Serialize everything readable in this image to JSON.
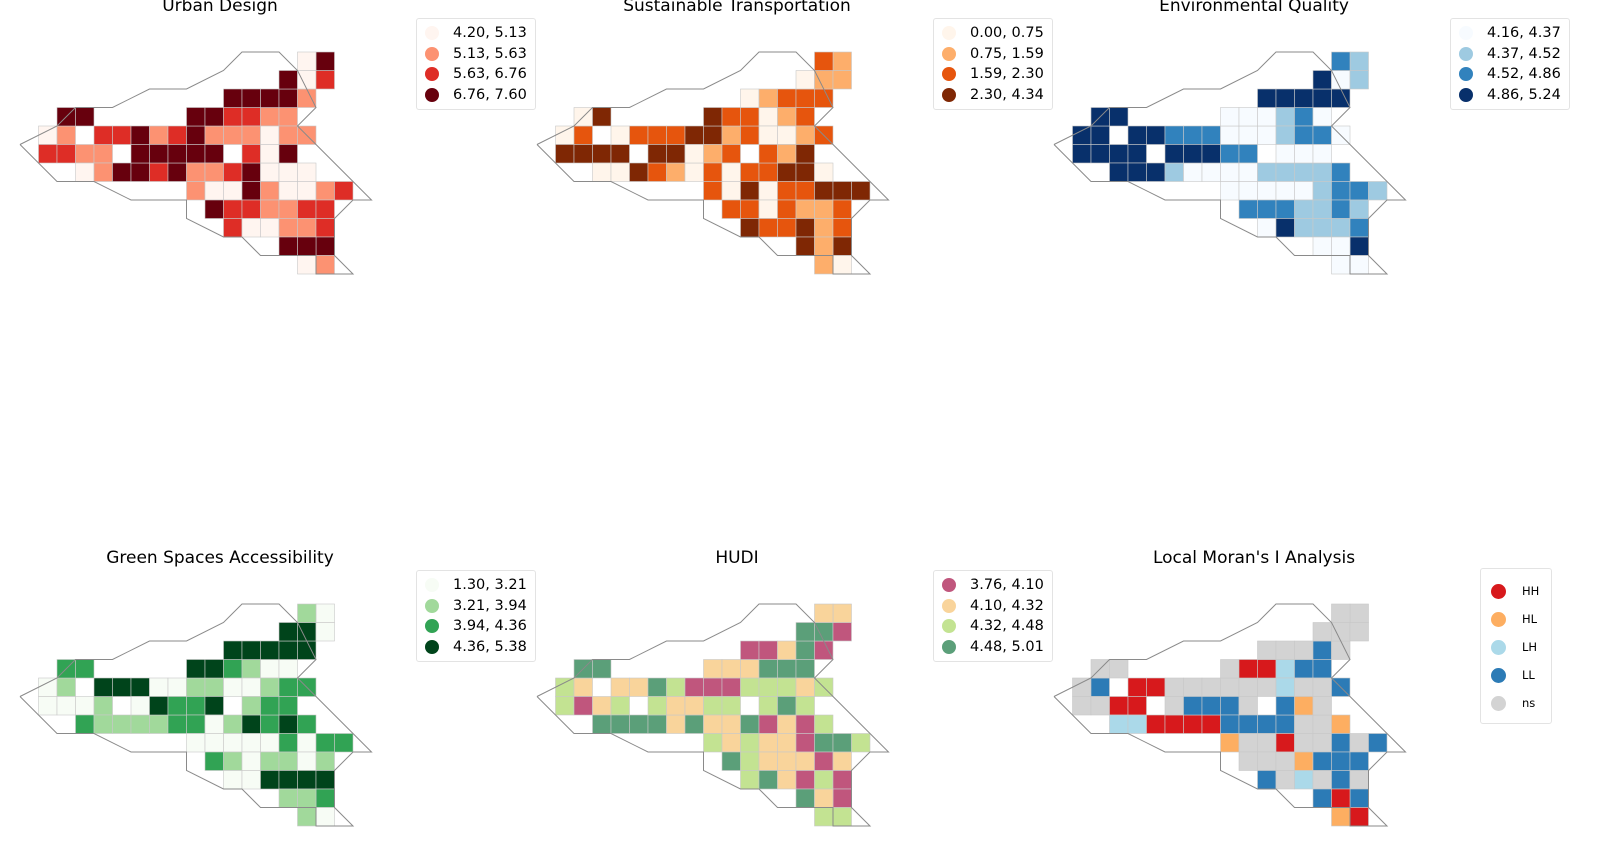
{
  "figure": {
    "boundary_points": [
      [
        0,
        5
      ],
      [
        2,
        4
      ],
      [
        3,
        3
      ],
      [
        5,
        3
      ],
      [
        7,
        2
      ],
      [
        9,
        2
      ],
      [
        11,
        1
      ],
      [
        12,
        0
      ],
      [
        14,
        0
      ],
      [
        15,
        1
      ],
      [
        16,
        3
      ],
      [
        15,
        4
      ],
      [
        16,
        5
      ],
      [
        17,
        6
      ],
      [
        18,
        7
      ],
      [
        19,
        8
      ],
      [
        18,
        8
      ],
      [
        17,
        9
      ],
      [
        17,
        10
      ],
      [
        17,
        11
      ],
      [
        18,
        12
      ],
      [
        16,
        12
      ],
      [
        16,
        11
      ],
      [
        15,
        11
      ],
      [
        13,
        11
      ],
      [
        12,
        10
      ],
      [
        11,
        10
      ],
      [
        9,
        9
      ],
      [
        9,
        8
      ],
      [
        8,
        8
      ],
      [
        6,
        8
      ],
      [
        4,
        7
      ],
      [
        2,
        7
      ],
      [
        1,
        6
      ],
      [
        0,
        5
      ]
    ],
    "cells": [
      [
        1,
        4
      ],
      [
        2,
        4
      ],
      [
        1,
        5
      ],
      [
        2,
        5
      ],
      [
        3,
        5
      ],
      [
        4,
        5
      ],
      [
        3,
        6
      ],
      [
        4,
        6
      ],
      [
        5,
        6
      ],
      [
        6,
        6
      ],
      [
        7,
        6
      ],
      [
        8,
        6
      ],
      [
        2,
        3
      ],
      [
        3,
        3
      ],
      [
        4,
        4
      ],
      [
        5,
        4
      ],
      [
        6,
        4
      ],
      [
        7,
        4
      ],
      [
        8,
        4
      ],
      [
        9,
        4
      ],
      [
        10,
        4
      ],
      [
        11,
        4
      ],
      [
        6,
        5
      ],
      [
        7,
        5
      ],
      [
        8,
        5
      ],
      [
        9,
        5
      ],
      [
        10,
        5
      ],
      [
        9,
        3
      ],
      [
        10,
        3
      ],
      [
        11,
        3
      ],
      [
        12,
        3
      ],
      [
        13,
        3
      ],
      [
        14,
        3
      ],
      [
        9,
        6
      ],
      [
        10,
        6
      ],
      [
        11,
        6
      ],
      [
        12,
        6
      ],
      [
        13,
        6
      ],
      [
        14,
        6
      ],
      [
        15,
        6
      ],
      [
        9,
        7
      ],
      [
        10,
        7
      ],
      [
        11,
        7
      ],
      [
        12,
        7
      ],
      [
        13,
        7
      ],
      [
        14,
        7
      ],
      [
        15,
        7
      ],
      [
        16,
        7
      ],
      [
        17,
        7
      ],
      [
        10,
        8
      ],
      [
        11,
        8
      ],
      [
        12,
        8
      ],
      [
        13,
        8
      ],
      [
        14,
        8
      ],
      [
        15,
        8
      ],
      [
        16,
        8
      ],
      [
        11,
        9
      ],
      [
        12,
        9
      ],
      [
        13,
        9
      ],
      [
        14,
        9
      ],
      [
        15,
        9
      ],
      [
        16,
        9
      ],
      [
        16,
        10
      ],
      [
        11,
        2
      ],
      [
        12,
        2
      ],
      [
        13,
        2
      ],
      [
        14,
        2
      ],
      [
        15,
        2
      ],
      [
        14,
        1
      ],
      [
        15,
        1
      ],
      [
        16,
        1
      ],
      [
        16,
        0
      ],
      [
        15,
        0
      ],
      [
        14,
        10
      ],
      [
        15,
        10
      ],
      [
        15,
        11
      ],
      [
        16,
        11
      ],
      [
        12,
        4
      ],
      [
        13,
        4
      ],
      [
        14,
        4
      ],
      [
        15,
        4
      ],
      [
        12,
        5
      ],
      [
        13,
        5
      ],
      [
        14,
        5
      ]
    ]
  },
  "panels": [
    {
      "id": "urban-design",
      "title": "Urban Design",
      "palette": [
        "#fff5f0",
        "#fc9272",
        "#de2d26",
        "#67000d"
      ],
      "legend": [
        "4.20, 5.13",
        "5.13, 5.63",
        "5.63, 6.76",
        "6.76, 7.60"
      ],
      "classes": [
        0,
        1,
        2,
        2,
        1,
        1,
        0,
        1,
        3,
        3,
        2,
        3,
        3,
        3,
        2,
        2,
        3,
        1,
        2,
        3,
        1,
        1,
        3,
        3,
        3,
        3,
        3,
        3,
        3,
        2,
        2,
        1,
        1,
        1,
        1,
        2,
        3,
        0,
        0,
        0,
        1,
        0,
        0,
        3,
        1,
        0,
        0,
        1,
        2,
        3,
        2,
        2,
        1,
        1,
        2,
        2,
        2,
        0,
        0,
        1,
        1,
        2,
        3,
        3,
        3,
        3,
        3,
        1,
        3,
        0,
        2,
        3,
        0,
        3,
        3,
        0,
        1,
        1,
        0,
        1,
        1,
        2,
        0,
        3
      ]
    },
    {
      "id": "sustainable-transportation",
      "title": "Sustainable Transportation",
      "palette": [
        "#fff5eb",
        "#fdae6b",
        "#e6550d",
        "#7f2704"
      ],
      "legend": [
        "0.00, 0.75",
        "0.75, 1.59",
        "1.59, 2.30",
        "2.30, 4.34"
      ],
      "classes": [
        0,
        2,
        3,
        3,
        3,
        3,
        0,
        0,
        3,
        2,
        1,
        0,
        0,
        3,
        0,
        2,
        2,
        2,
        3,
        3,
        1,
        2,
        3,
        3,
        0,
        1,
        2,
        3,
        2,
        2,
        0,
        1,
        2,
        2,
        0,
        2,
        2,
        3,
        3,
        0,
        2,
        0,
        3,
        0,
        2,
        2,
        3,
        3,
        3,
        2,
        2,
        0,
        2,
        1,
        1,
        2,
        3,
        2,
        2,
        3,
        1,
        2,
        3,
        0,
        1,
        2,
        2,
        2,
        0,
        1,
        1,
        1,
        2,
        3,
        1,
        1,
        0,
        0,
        0,
        1,
        2,
        2,
        1,
        3
      ]
    },
    {
      "id": "environmental-quality",
      "title": "Environmental Quality",
      "palette": [
        "#f7fbff",
        "#9ecae1",
        "#3182bd",
        "#08306b"
      ],
      "legend": [
        "4.16, 4.37",
        "4.37, 4.52",
        "4.52, 4.86",
        "4.86, 5.24"
      ],
      "classes": [
        3,
        3,
        3,
        3,
        3,
        3,
        3,
        3,
        3,
        1,
        0,
        0,
        3,
        3,
        3,
        3,
        2,
        2,
        2,
        0,
        0,
        0,
        3,
        3,
        3,
        2,
        2,
        0,
        0,
        0,
        1,
        2,
        0,
        0,
        0,
        1,
        1,
        1,
        1,
        2,
        0,
        0,
        0,
        0,
        0,
        1,
        2,
        2,
        1,
        2,
        2,
        2,
        1,
        1,
        2,
        1,
        0,
        3,
        1,
        1,
        1,
        2,
        3,
        3,
        3,
        3,
        3,
        3,
        3,
        0,
        1,
        1,
        2,
        0,
        0,
        0,
        0,
        1,
        2,
        2,
        0,
        0,
        0,
        0
      ]
    },
    {
      "id": "green-spaces-accessibility",
      "title": "Green Spaces Accessibility",
      "palette": [
        "#f7fcf5",
        "#a1d99b",
        "#31a354",
        "#00441b"
      ],
      "legend": [
        "1.30, 3.21",
        "3.21, 3.94",
        "3.94, 4.36",
        "4.36, 5.38"
      ],
      "classes": [
        0,
        1,
        0,
        0,
        0,
        1,
        2,
        1,
        1,
        1,
        1,
        2,
        2,
        2,
        3,
        3,
        3,
        0,
        0,
        1,
        1,
        0,
        0,
        3,
        2,
        2,
        3,
        3,
        3,
        2,
        1,
        0,
        0,
        2,
        0,
        1,
        3,
        2,
        3,
        2,
        0,
        0,
        0,
        0,
        0,
        2,
        0,
        2,
        2,
        2,
        1,
        0,
        1,
        1,
        0,
        1,
        0,
        0,
        3,
        3,
        3,
        3,
        2,
        3,
        3,
        3,
        3,
        3,
        3,
        3,
        0,
        0,
        1,
        1,
        1,
        1,
        0,
        0,
        1,
        2,
        2,
        1,
        2,
        2
      ]
    },
    {
      "id": "hudi",
      "title": "HUDI",
      "palette": [
        "#c0567d",
        "#f9d49b",
        "#c3e392",
        "#5b9f79"
      ],
      "legend": [
        "3.76, 4.10",
        "4.10, 4.32",
        "4.32, 4.48",
        "4.48, 5.01"
      ],
      "classes": [
        2,
        1,
        2,
        0,
        1,
        2,
        3,
        3,
        3,
        3,
        1,
        3,
        3,
        3,
        1,
        1,
        3,
        2,
        0,
        0,
        0,
        2,
        2,
        1,
        1,
        2,
        2,
        1,
        1,
        1,
        3,
        3,
        3,
        1,
        1,
        3,
        0,
        1,
        0,
        2,
        2,
        1,
        2,
        1,
        1,
        0,
        3,
        3,
        2,
        3,
        2,
        1,
        1,
        1,
        0,
        1,
        2,
        3,
        1,
        0,
        2,
        0,
        0,
        0,
        0,
        1,
        3,
        0,
        3,
        3,
        0,
        1,
        1,
        3,
        1,
        2,
        2,
        2,
        2,
        1,
        2,
        2,
        3,
        2
      ]
    },
    {
      "id": "local-morans-i",
      "title": "Local Moran's I Analysis",
      "palette": [
        "#d7191c",
        "#fdae61",
        "#abd9e9",
        "#2c7bb6",
        "#d3d3d3"
      ],
      "legend": [
        "HH",
        "HL",
        "LH",
        "LL",
        "ns"
      ],
      "classes": [
        4,
        3,
        4,
        4,
        0,
        0,
        2,
        2,
        0,
        0,
        0,
        0,
        4,
        4,
        0,
        0,
        4,
        4,
        4,
        4,
        4,
        4,
        4,
        3,
        3,
        3,
        4,
        4,
        0,
        0,
        2,
        3,
        3,
        3,
        3,
        3,
        3,
        4,
        4,
        1,
        1,
        4,
        4,
        0,
        4,
        4,
        3,
        4,
        3,
        4,
        4,
        4,
        1,
        3,
        3,
        3,
        3,
        4,
        2,
        4,
        3,
        4,
        3,
        4,
        4,
        4,
        3,
        4,
        4,
        4,
        4,
        4,
        4,
        3,
        0,
        1,
        0,
        2,
        4,
        4,
        3,
        3,
        1,
        4
      ]
    }
  ]
}
